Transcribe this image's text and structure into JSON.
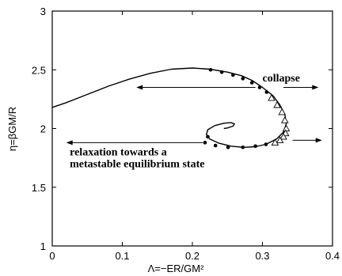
{
  "chart_data": {
    "type": "line",
    "xlabel": "Λ=−ER/GM²",
    "ylabel": "η=βGM/R",
    "xlim": [
      0,
      0.4
    ],
    "ylim": [
      1,
      3
    ],
    "x_ticks": [
      "0",
      "0.1",
      "0.2",
      "0.3",
      "0.4"
    ],
    "y_ticks": [
      "1",
      "1.5",
      "2",
      "2.5",
      "3"
    ],
    "grid": false,
    "series": [
      {
        "style": "solid-line",
        "x": [
          0.0,
          0.02,
          0.05,
          0.08,
          0.11,
          0.14,
          0.17,
          0.2,
          0.225,
          0.25,
          0.27,
          0.285,
          0.3,
          0.315,
          0.325,
          0.332,
          0.334,
          0.33,
          0.32,
          0.305,
          0.29,
          0.273,
          0.255,
          0.238,
          0.225,
          0.22,
          0.222,
          0.232,
          0.245,
          0.255,
          0.26,
          0.258,
          0.25,
          0.245
        ],
        "y": [
          2.18,
          2.22,
          2.29,
          2.36,
          2.42,
          2.47,
          2.505,
          2.515,
          2.505,
          2.48,
          2.45,
          2.41,
          2.35,
          2.28,
          2.2,
          2.12,
          2.04,
          1.97,
          1.91,
          1.865,
          1.845,
          1.84,
          1.85,
          1.875,
          1.91,
          1.95,
          1.99,
          2.025,
          2.045,
          2.05,
          2.04,
          2.02,
          2.005,
          2.0
        ]
      },
      {
        "style": "filled-circles",
        "x": [
          0.226,
          0.242,
          0.258,
          0.272,
          0.285,
          0.296,
          0.306,
          0.222,
          0.218,
          0.233,
          0.251,
          0.272,
          0.29,
          0.305
        ],
        "y": [
          2.5,
          2.48,
          2.455,
          2.425,
          2.39,
          2.35,
          2.31,
          1.93,
          1.88,
          1.855,
          1.84,
          1.84,
          1.85,
          1.865
        ]
      },
      {
        "style": "open-triangles",
        "x": [
          0.313,
          0.321,
          0.328,
          0.332,
          0.334,
          0.333,
          0.33,
          0.325,
          0.318
        ],
        "y": [
          2.26,
          2.2,
          2.14,
          2.07,
          2.0,
          1.96,
          1.93,
          1.9,
          1.88
        ]
      }
    ],
    "arrows": [
      {
        "from": [
          0.29,
          2.35
        ],
        "to": [
          0.12,
          2.35
        ]
      },
      {
        "from": [
          0.33,
          2.35
        ],
        "to": [
          0.38,
          2.35
        ]
      },
      {
        "from": [
          0.215,
          1.88
        ],
        "to": [
          0.02,
          1.88
        ]
      },
      {
        "from": [
          0.343,
          1.9
        ],
        "to": [
          0.385,
          1.9
        ]
      }
    ],
    "annotations": [
      {
        "text": "collapse",
        "x": 0.3,
        "y": 2.4
      },
      {
        "text": "relaxation towards a",
        "x": 0.025,
        "y": 1.77
      },
      {
        "text": "metastable equilibrium state",
        "x": 0.025,
        "y": 1.67
      }
    ]
  }
}
